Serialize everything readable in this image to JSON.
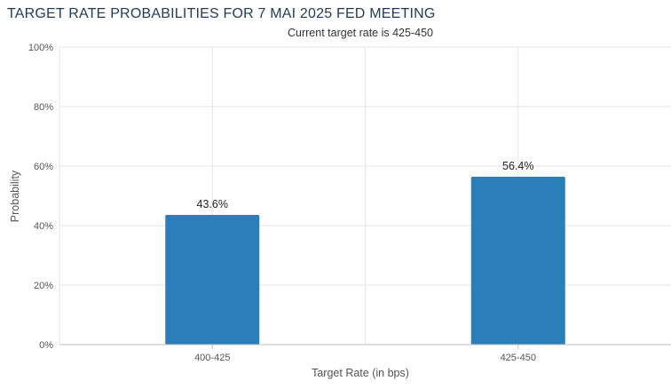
{
  "chart_data": {
    "type": "bar",
    "title": "TARGET RATE PROBABILITIES FOR 7 MAI 2025 FED MEETING",
    "subtitle": "Current target rate is 425-450",
    "xlabel": "Target Rate (in bps)",
    "ylabel": "Probability",
    "categories": [
      "400-425",
      "425-450"
    ],
    "values": [
      43.6,
      56.4
    ],
    "data_labels": [
      "43.6%",
      "56.4%"
    ],
    "ylim": [
      0,
      100
    ],
    "yticks": [
      0,
      20,
      40,
      60,
      80,
      100
    ],
    "ytick_labels": [
      "0%",
      "20%",
      "40%",
      "60%",
      "80%",
      "100%"
    ],
    "grid": true,
    "legend": "none",
    "bar_color": "#2a7fba",
    "grid_color": "#e6e6e6",
    "axis_color": "#bdbdbd",
    "title_color": "#1f3a5c"
  }
}
